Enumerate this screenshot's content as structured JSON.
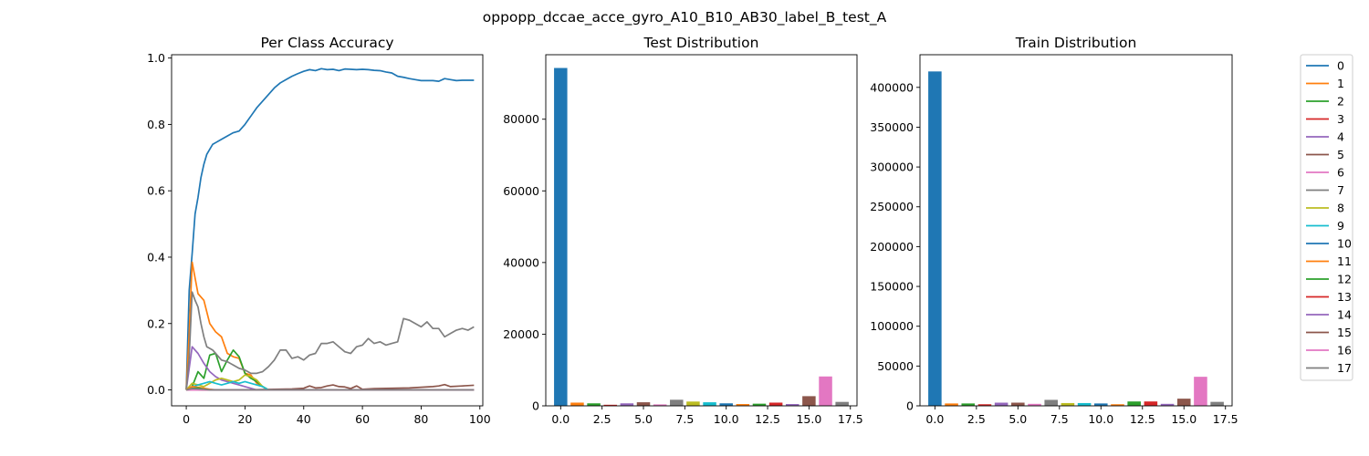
{
  "figure": {
    "suptitle": "oppopp_dccae_acce_gyro_A10_B10_AB30_label_B_test_A"
  },
  "colors": [
    "#1f77b4",
    "#ff7f0e",
    "#2ca02c",
    "#d62728",
    "#9467bd",
    "#8c564b",
    "#e377c2",
    "#7f7f7f",
    "#bcbd22",
    "#17becf"
  ],
  "chart_data": [
    {
      "type": "line",
      "title": "Per Class Accuracy",
      "xlabel": "",
      "ylabel": "",
      "xlim": [
        -5,
        101
      ],
      "ylim": [
        -0.048,
        1.01
      ],
      "xticks": [
        0,
        20,
        40,
        60,
        80,
        100
      ],
      "yticks": [
        0.0,
        0.2,
        0.4,
        0.6,
        0.8,
        1.0
      ],
      "ytick_labels": [
        "0.0",
        "0.2",
        "0.4",
        "0.6",
        "0.8",
        "1.0"
      ],
      "grid": false,
      "legend": "outside-right",
      "series": [
        {
          "name": "0",
          "color": "#1f77b4",
          "x": [
            0,
            1,
            2,
            3,
            4,
            5,
            6,
            7,
            8,
            9,
            10,
            12,
            14,
            16,
            18,
            20,
            22,
            24,
            26,
            28,
            30,
            32,
            34,
            36,
            38,
            40,
            42,
            44,
            46,
            48,
            50,
            52,
            54,
            56,
            58,
            60,
            62,
            64,
            66,
            68,
            70,
            72,
            74,
            76,
            78,
            80,
            82,
            84,
            86,
            88,
            90,
            92,
            94,
            96,
            98
          ],
          "values": [
            0.0,
            0.3,
            0.41,
            0.53,
            0.58,
            0.64,
            0.68,
            0.71,
            0.725,
            0.74,
            0.745,
            0.755,
            0.765,
            0.775,
            0.78,
            0.8,
            0.825,
            0.85,
            0.87,
            0.89,
            0.91,
            0.925,
            0.935,
            0.945,
            0.953,
            0.96,
            0.965,
            0.962,
            0.968,
            0.965,
            0.966,
            0.962,
            0.967,
            0.966,
            0.965,
            0.966,
            0.965,
            0.963,
            0.962,
            0.958,
            0.955,
            0.945,
            0.942,
            0.938,
            0.935,
            0.932,
            0.932,
            0.932,
            0.93,
            0.938,
            0.935,
            0.932,
            0.933,
            0.933,
            0.933
          ]
        },
        {
          "name": "1",
          "color": "#ff7f0e",
          "x": [
            0,
            1,
            2,
            4,
            6,
            8,
            10,
            12,
            14,
            16,
            18,
            20,
            22,
            24,
            26,
            28,
            30
          ],
          "values": [
            0.0,
            0.17,
            0.385,
            0.29,
            0.27,
            0.2,
            0.175,
            0.16,
            0.11,
            0.1,
            0.095,
            0.05,
            0.045,
            0.02,
            0.01,
            0.0,
            0.0
          ]
        },
        {
          "name": "2",
          "color": "#2ca02c",
          "x": [
            0,
            2,
            4,
            6,
            8,
            10,
            12,
            14,
            16,
            18,
            20,
            22,
            24,
            26,
            28,
            30
          ],
          "values": [
            0.0,
            0.01,
            0.055,
            0.035,
            0.105,
            0.11,
            0.055,
            0.09,
            0.12,
            0.1,
            0.05,
            0.035,
            0.025,
            0.01,
            0.0,
            0.0
          ]
        },
        {
          "name": "3",
          "color": "#d62728",
          "x": [
            0,
            2,
            4,
            6,
            8,
            10,
            14,
            20,
            30
          ],
          "values": [
            0.0,
            0.003,
            0.002,
            0.002,
            0.001,
            0.0,
            0.0,
            0.0,
            0.0
          ]
        },
        {
          "name": "4",
          "color": "#9467bd",
          "x": [
            0,
            2,
            4,
            6,
            8,
            10,
            12,
            14,
            16,
            18,
            20,
            24,
            30
          ],
          "values": [
            0.0,
            0.13,
            0.11,
            0.08,
            0.055,
            0.04,
            0.03,
            0.025,
            0.02,
            0.015,
            0.01,
            0.0,
            0.0
          ]
        },
        {
          "name": "5",
          "color": "#8c564b",
          "x": [
            0,
            10,
            20,
            30,
            36,
            40,
            42,
            44,
            46,
            48,
            50,
            52,
            54,
            56,
            58,
            60,
            64,
            70,
            76,
            80,
            84,
            86,
            88,
            90,
            94,
            98
          ],
          "values": [
            0.0,
            0.0,
            0.0,
            0.002,
            0.003,
            0.005,
            0.012,
            0.006,
            0.007,
            0.012,
            0.015,
            0.01,
            0.009,
            0.004,
            0.012,
            0.002,
            0.004,
            0.005,
            0.006,
            0.008,
            0.01,
            0.012,
            0.016,
            0.01,
            0.012,
            0.014
          ]
        },
        {
          "name": "6",
          "color": "#e377c2",
          "x": [
            0,
            5,
            10,
            20,
            30,
            40,
            50,
            60,
            70,
            80,
            90,
            98
          ],
          "values": [
            0.0,
            0.0,
            0.0,
            0.0,
            0.0,
            0.0,
            0.0,
            0.0,
            0.0,
            0.0,
            0.0,
            0.0
          ]
        },
        {
          "name": "7",
          "color": "#7f7f7f",
          "x": [
            0,
            1,
            2,
            3,
            4,
            5,
            6,
            7,
            8,
            9,
            10,
            12,
            14,
            16,
            18,
            20,
            22,
            24,
            26,
            28,
            30,
            32,
            34,
            36,
            38,
            40,
            42,
            44,
            46,
            48,
            50,
            52,
            54,
            56,
            58,
            60,
            62,
            64,
            66,
            68,
            70,
            72,
            74,
            76,
            78,
            80,
            82,
            84,
            86,
            88,
            90,
            92,
            94,
            96,
            98
          ],
          "values": [
            0.0,
            0.1,
            0.295,
            0.27,
            0.25,
            0.2,
            0.16,
            0.13,
            0.125,
            0.12,
            0.11,
            0.09,
            0.085,
            0.075,
            0.065,
            0.06,
            0.05,
            0.05,
            0.055,
            0.07,
            0.09,
            0.12,
            0.12,
            0.095,
            0.1,
            0.09,
            0.105,
            0.11,
            0.14,
            0.14,
            0.145,
            0.13,
            0.115,
            0.11,
            0.13,
            0.135,
            0.155,
            0.14,
            0.145,
            0.135,
            0.14,
            0.145,
            0.215,
            0.21,
            0.2,
            0.19,
            0.205,
            0.185,
            0.185,
            0.16,
            0.17,
            0.18,
            0.185,
            0.18,
            0.19
          ]
        },
        {
          "name": "8",
          "color": "#bcbd22",
          "x": [
            0,
            2,
            4,
            6,
            8,
            10,
            12,
            14,
            16,
            18,
            20,
            22,
            24,
            26,
            28,
            30
          ],
          "values": [
            0.0,
            0.02,
            0.015,
            0.01,
            0.02,
            0.03,
            0.035,
            0.03,
            0.025,
            0.03,
            0.045,
            0.04,
            0.03,
            0.01,
            0.0,
            0.0
          ]
        },
        {
          "name": "9",
          "color": "#17becf",
          "x": [
            0,
            2,
            4,
            6,
            8,
            10,
            12,
            14,
            16,
            18,
            20,
            22,
            24,
            26,
            28,
            30
          ],
          "values": [
            0.0,
            0.01,
            0.015,
            0.02,
            0.025,
            0.02,
            0.015,
            0.02,
            0.025,
            0.02,
            0.025,
            0.02,
            0.015,
            0.01,
            0.0,
            0.0
          ]
        },
        {
          "name": "10",
          "color": "#1f77b4",
          "x": [
            0,
            2,
            4,
            6,
            8,
            10,
            20,
            30,
            40,
            60,
            80,
            98
          ],
          "values": [
            0.0,
            0.005,
            0.003,
            0.0,
            0.0,
            0.0,
            0.0,
            0.0,
            0.0,
            0.0,
            0.0,
            0.0
          ]
        },
        {
          "name": "11",
          "color": "#ff7f0e",
          "x": [
            0,
            2,
            4,
            6,
            8,
            10,
            20,
            30,
            40,
            60,
            80,
            98
          ],
          "values": [
            0.0,
            0.01,
            0.008,
            0.005,
            0.002,
            0.0,
            0.0,
            0.0,
            0.0,
            0.0,
            0.0,
            0.0
          ]
        },
        {
          "name": "12",
          "color": "#2ca02c",
          "x": [
            0,
            2,
            4,
            6,
            8,
            10,
            20,
            30,
            40,
            60,
            80,
            98
          ],
          "values": [
            0.0,
            0.004,
            0.006,
            0.002,
            0.0,
            0.0,
            0.0,
            0.0,
            0.0,
            0.0,
            0.0,
            0.0
          ]
        },
        {
          "name": "13",
          "color": "#d62728",
          "x": [
            0,
            2,
            4,
            6,
            8,
            10,
            20,
            30,
            40,
            60,
            80,
            98
          ],
          "values": [
            0.0,
            0.002,
            0.001,
            0.0,
            0.0,
            0.0,
            0.0,
            0.0,
            0.0,
            0.0,
            0.0,
            0.0
          ]
        },
        {
          "name": "14",
          "color": "#9467bd",
          "x": [
            0,
            2,
            4,
            6,
            8,
            10,
            20,
            30,
            40,
            60,
            80,
            98
          ],
          "values": [
            0.0,
            0.003,
            0.002,
            0.0,
            0.0,
            0.0,
            0.0,
            0.0,
            0.0,
            0.0,
            0.0,
            0.0
          ]
        },
        {
          "name": "15",
          "color": "#8c564b",
          "x": [
            0,
            2,
            4,
            6,
            8,
            10,
            20,
            30,
            40,
            60,
            80,
            98
          ],
          "values": [
            0.0,
            0.002,
            0.001,
            0.0,
            0.0,
            0.0,
            0.0,
            0.0,
            0.0,
            0.0,
            0.0,
            0.0
          ]
        },
        {
          "name": "16",
          "color": "#e377c2",
          "x": [
            0,
            2,
            4,
            6,
            8,
            10,
            20,
            30,
            40,
            60,
            80,
            98
          ],
          "values": [
            0.0,
            0.0,
            0.0,
            0.0,
            0.0,
            0.0,
            0.0,
            0.0,
            0.0,
            0.0,
            0.0,
            0.0
          ]
        },
        {
          "name": "17",
          "color": "#7f7f7f",
          "x": [
            0,
            2,
            4,
            6,
            8,
            10,
            20,
            30,
            40,
            60,
            80,
            98
          ],
          "values": [
            0.0,
            0.004,
            0.003,
            0.002,
            0.0,
            0.0,
            0.0,
            0.0,
            0.0,
            0.0,
            0.0,
            0.0
          ]
        }
      ]
    },
    {
      "type": "bar",
      "title": "Test Distribution",
      "xlabel": "",
      "ylabel": "",
      "xlim": [
        -0.9,
        17.9
      ],
      "ylim": [
        0,
        98000
      ],
      "xticks": [
        0,
        2.5,
        5,
        7.5,
        10,
        12.5,
        15,
        17.5
      ],
      "xtick_labels": [
        "0.0",
        "2.5",
        "5.0",
        "7.5",
        "10.0",
        "12.5",
        "15.0",
        "17.5"
      ],
      "yticks": [
        0,
        20000,
        40000,
        60000,
        80000
      ],
      "categories": [
        0,
        1,
        2,
        3,
        4,
        5,
        6,
        7,
        8,
        9,
        10,
        11,
        12,
        13,
        14,
        15,
        16,
        17
      ],
      "values": [
        94300,
        900,
        700,
        300,
        700,
        1000,
        400,
        1700,
        1200,
        1000,
        700,
        500,
        600,
        900,
        500,
        2700,
        8200,
        1100
      ]
    },
    {
      "type": "bar",
      "title": "Train Distribution",
      "xlabel": "",
      "ylabel": "",
      "xlim": [
        -0.9,
        17.9
      ],
      "ylim": [
        0,
        441000
      ],
      "xticks": [
        0,
        2.5,
        5,
        7.5,
        10,
        12.5,
        15,
        17.5
      ],
      "xtick_labels": [
        "0.0",
        "2.5",
        "5.0",
        "7.5",
        "10.0",
        "12.5",
        "15.0",
        "17.5"
      ],
      "yticks": [
        0,
        50000,
        100000,
        150000,
        200000,
        250000,
        300000,
        350000,
        400000
      ],
      "categories": [
        0,
        1,
        2,
        3,
        4,
        5,
        6,
        7,
        8,
        9,
        10,
        11,
        12,
        13,
        14,
        15,
        16,
        17
      ],
      "values": [
        420000,
        3000,
        3000,
        2000,
        4000,
        4000,
        2500,
        7500,
        3500,
        3500,
        3000,
        2000,
        5500,
        5500,
        2500,
        9000,
        36500,
        5000
      ]
    }
  ]
}
